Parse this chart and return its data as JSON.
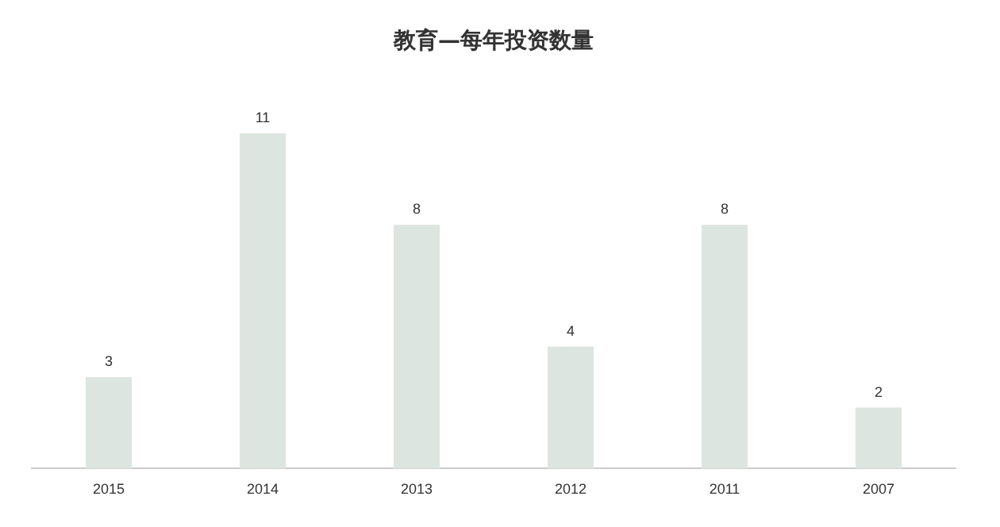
{
  "chart_data": {
    "type": "bar",
    "title": "教育—每年投资数量",
    "categories": [
      "2015",
      "2014",
      "2013",
      "2012",
      "2011",
      "2007"
    ],
    "values": [
      3,
      11,
      8,
      4,
      8,
      2
    ],
    "color": "#dde5e0",
    "data_labels": true,
    "grid": false,
    "legend": false
  }
}
